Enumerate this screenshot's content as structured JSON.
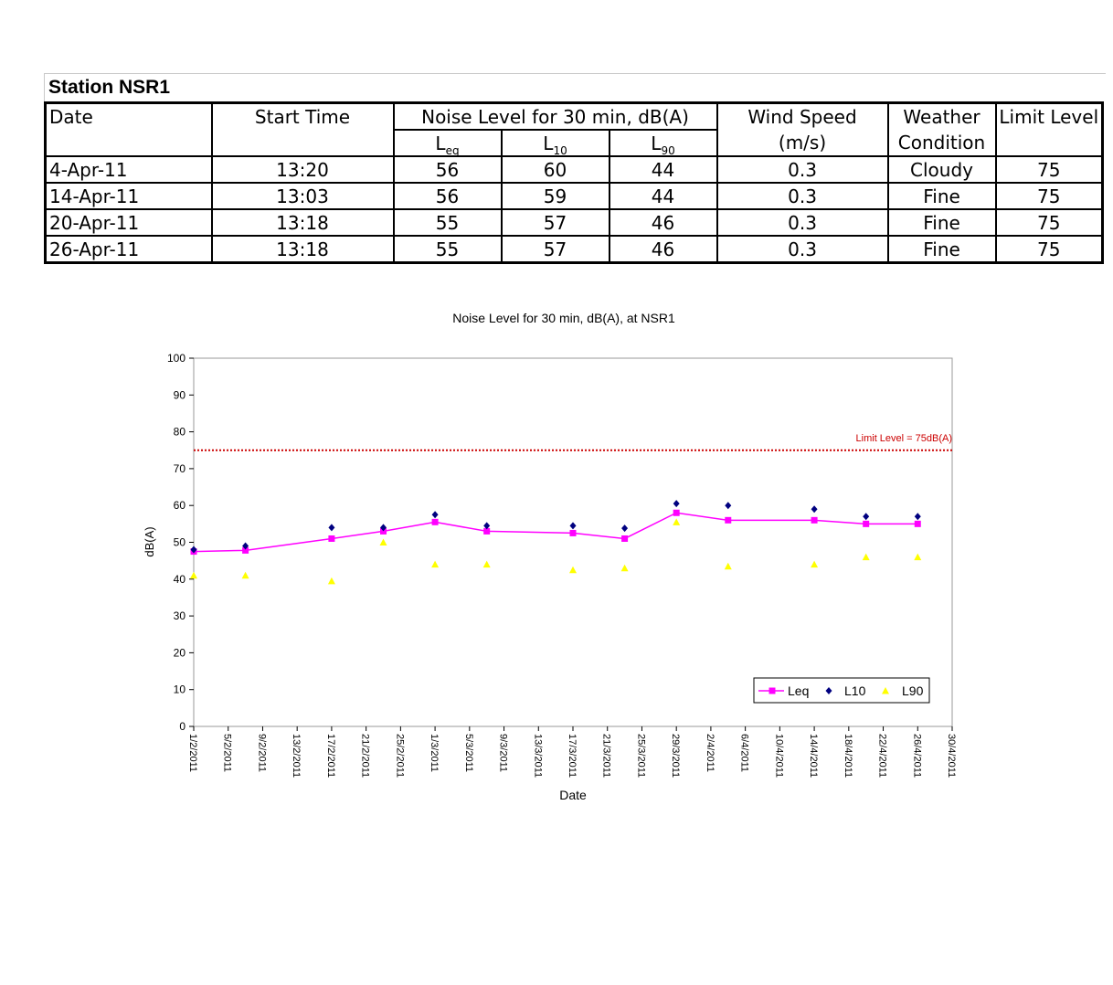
{
  "station": {
    "title": "Station NSR1",
    "header": {
      "date": "Date",
      "start_time": "Start Time",
      "noise_group": "Noise Level for 30 min, dB(A)",
      "leq": {
        "main": "L",
        "sub": "eq"
      },
      "l10": {
        "main": "L",
        "sub": "10"
      },
      "l90": {
        "main": "L",
        "sub": "90"
      },
      "wind_line1": "Wind Speed",
      "wind_line2": "(m/s)",
      "weather_line1": "Weather",
      "weather_line2": "Condition",
      "limit": "Limit Level"
    },
    "rows": [
      {
        "date": "4-Apr-11",
        "start": "13:20",
        "leq": "56",
        "l10": "60",
        "l90": "44",
        "wind": "0.3",
        "weather": "Cloudy",
        "limit": "75"
      },
      {
        "date": "14-Apr-11",
        "start": "13:03",
        "leq": "56",
        "l10": "59",
        "l90": "44",
        "wind": "0.3",
        "weather": "Fine",
        "limit": "75"
      },
      {
        "date": "20-Apr-11",
        "start": "13:18",
        "leq": "55",
        "l10": "57",
        "l90": "46",
        "wind": "0.3",
        "weather": "Fine",
        "limit": "75"
      },
      {
        "date": "26-Apr-11",
        "start": "13:18",
        "leq": "55",
        "l10": "57",
        "l90": "46",
        "wind": "0.3",
        "weather": "Fine",
        "limit": "75"
      }
    ]
  },
  "chart_data": {
    "type": "line",
    "title": "Noise Level for 30 min, dB(A), at NSR1",
    "xlabel": "Date",
    "ylabel": "dB(A)",
    "xlim": [
      "1/2/2011",
      "30/4/2011"
    ],
    "ylim": [
      0,
      100
    ],
    "yticks": [
      0,
      10,
      20,
      30,
      40,
      50,
      60,
      70,
      80,
      90,
      100
    ],
    "xticks": [
      "1/2/2011",
      "5/2/2011",
      "9/2/2011",
      "13/2/2011",
      "17/2/2011",
      "21/2/2011",
      "25/2/2011",
      "1/3/2011",
      "5/3/2011",
      "9/3/2011",
      "13/3/2011",
      "17/3/2011",
      "21/3/2011",
      "25/3/2011",
      "29/3/2011",
      "2/4/2011",
      "6/4/2011",
      "10/4/2011",
      "14/4/2011",
      "18/4/2011",
      "22/4/2011",
      "26/4/2011",
      "30/4/2011"
    ],
    "grid": false,
    "legend_position": "bottom-right",
    "reference_line": {
      "value": 75,
      "label": "Limit Level = 75dB(A)",
      "color": "#cc0000"
    },
    "x": [
      "1/2/2011",
      "7/2/2011",
      "17/2/2011",
      "23/2/2011",
      "1/3/2011",
      "7/3/2011",
      "17/3/2011",
      "23/3/2011",
      "29/3/2011",
      "4/4/2011",
      "14/4/2011",
      "20/4/2011",
      "26/4/2011"
    ],
    "series": [
      {
        "name": "Leq",
        "marker": "square",
        "color": "#ff00ff",
        "line": true,
        "values": [
          47.5,
          47.8,
          51,
          53,
          55.5,
          53,
          52.5,
          51,
          58,
          56,
          56,
          55,
          55
        ]
      },
      {
        "name": "L10",
        "marker": "diamond",
        "color": "#000080",
        "line": false,
        "values": [
          48,
          49,
          54,
          54,
          57.5,
          54.5,
          54.5,
          53.8,
          60.5,
          60,
          59,
          57,
          57
        ]
      },
      {
        "name": "L90",
        "marker": "triangle",
        "color": "#ffff00",
        "line": false,
        "values": [
          41,
          41,
          39.5,
          50,
          44,
          44,
          42.5,
          43,
          55.5,
          43.5,
          44,
          46,
          46
        ]
      }
    ]
  }
}
